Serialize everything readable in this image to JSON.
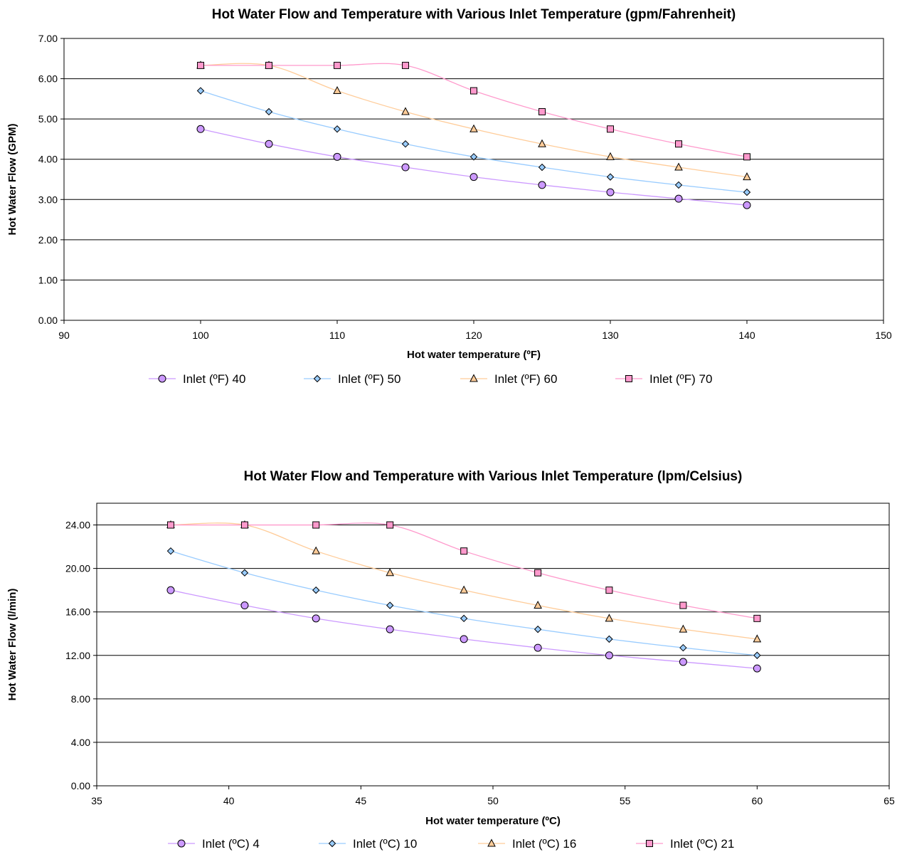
{
  "chart_data": [
    {
      "type": "line",
      "title": "Hot Water Flow and Temperature with Various Inlet Temperature (gpm/Fahrenheit)",
      "xlabel": "Hot water temperature (ºF)",
      "ylabel": "Hot Water Flow (GPM)",
      "xlim": [
        90,
        150
      ],
      "ylim": [
        0,
        7
      ],
      "xticks": [
        90,
        100,
        110,
        120,
        130,
        140,
        150
      ],
      "yticks": [
        0,
        1,
        2,
        3,
        4,
        5,
        6,
        7
      ],
      "xtick_labels": [
        "90",
        "100",
        "110",
        "120",
        "130",
        "140",
        "150"
      ],
      "ytick_labels": [
        "0.00",
        "1.00",
        "2.00",
        "3.00",
        "4.00",
        "5.00",
        "6.00",
        "7.00"
      ],
      "grid": "horizontal",
      "legend_position": "bottom",
      "series": [
        {
          "name": "Inlet (ºF) 40",
          "marker": "circle",
          "color": "#cc99ff",
          "line_color": "#cc99ff",
          "x": [
            100,
            105,
            110,
            115,
            120,
            125,
            130,
            135,
            140
          ],
          "y": [
            4.75,
            4.38,
            4.06,
            3.8,
            3.56,
            3.36,
            3.18,
            3.02,
            2.86
          ]
        },
        {
          "name": "Inlet (ºF) 50",
          "marker": "diamond",
          "color": "#99ccff",
          "line_color": "#99ccff",
          "x": [
            100,
            105,
            110,
            115,
            120,
            125,
            130,
            135,
            140
          ],
          "y": [
            5.7,
            5.18,
            4.75,
            4.38,
            4.06,
            3.8,
            3.56,
            3.36,
            3.18
          ]
        },
        {
          "name": "Inlet (ºF) 60",
          "marker": "triangle",
          "color": "#ffcc99",
          "line_color": "#ffcc99",
          "x": [
            100,
            105,
            110,
            115,
            120,
            125,
            130,
            135,
            140
          ],
          "y": [
            6.33,
            6.33,
            5.7,
            5.18,
            4.75,
            4.38,
            4.06,
            3.8,
            3.56
          ]
        },
        {
          "name": "Inlet (ºF) 70",
          "marker": "square",
          "color": "#ff99cc",
          "line_color": "#ff99cc",
          "x": [
            100,
            105,
            110,
            115,
            120,
            125,
            130,
            135,
            140
          ],
          "y": [
            6.33,
            6.33,
            6.33,
            6.33,
            5.7,
            5.18,
            4.75,
            4.38,
            4.06
          ]
        }
      ]
    },
    {
      "type": "line",
      "title": "Hot Water Flow and Temperature with Various Inlet Temperature (lpm/Celsius)",
      "xlabel": "Hot water temperature (ºC)",
      "ylabel": "Hot Water Flow (l/min)",
      "xlim": [
        35,
        65
      ],
      "ylim": [
        0,
        26
      ],
      "xticks": [
        35,
        40,
        45,
        50,
        55,
        60,
        65
      ],
      "yticks": [
        0,
        4,
        8,
        12,
        16,
        20,
        24
      ],
      "xtick_labels": [
        "35",
        "40",
        "45",
        "50",
        "55",
        "60",
        "65"
      ],
      "ytick_labels": [
        "0.00",
        "4.00",
        "8.00",
        "12.00",
        "16.00",
        "20.00",
        "24.00"
      ],
      "grid": "horizontal",
      "legend_position": "bottom",
      "series": [
        {
          "name": "Inlet (ºC) 4",
          "marker": "circle",
          "color": "#cc99ff",
          "line_color": "#cc99ff",
          "x": [
            37.8,
            40.6,
            43.3,
            46.1,
            48.9,
            51.7,
            54.4,
            57.2,
            60.0
          ],
          "y": [
            18.0,
            16.6,
            15.4,
            14.4,
            13.5,
            12.7,
            12.0,
            11.4,
            10.8
          ]
        },
        {
          "name": "Inlet (ºC) 10",
          "marker": "diamond",
          "color": "#99ccff",
          "line_color": "#99ccff",
          "x": [
            37.8,
            40.6,
            43.3,
            46.1,
            48.9,
            51.7,
            54.4,
            57.2,
            60.0
          ],
          "y": [
            21.6,
            19.6,
            18.0,
            16.6,
            15.4,
            14.4,
            13.5,
            12.7,
            12.0
          ]
        },
        {
          "name": "Inlet (ºC) 16",
          "marker": "triangle",
          "color": "#ffcc99",
          "line_color": "#ffcc99",
          "x": [
            37.8,
            40.6,
            43.3,
            46.1,
            48.9,
            51.7,
            54.4,
            57.2,
            60.0
          ],
          "y": [
            24.0,
            24.0,
            21.6,
            19.6,
            18.0,
            16.6,
            15.4,
            14.4,
            13.5
          ]
        },
        {
          "name": "Inlet (ºC) 21",
          "marker": "square",
          "color": "#ff99cc",
          "line_color": "#ff99cc",
          "x": [
            37.8,
            40.6,
            43.3,
            46.1,
            48.9,
            51.7,
            54.4,
            57.2,
            60.0
          ],
          "y": [
            24.0,
            24.0,
            24.0,
            24.0,
            21.6,
            19.6,
            18.0,
            16.6,
            15.4
          ]
        }
      ]
    }
  ]
}
